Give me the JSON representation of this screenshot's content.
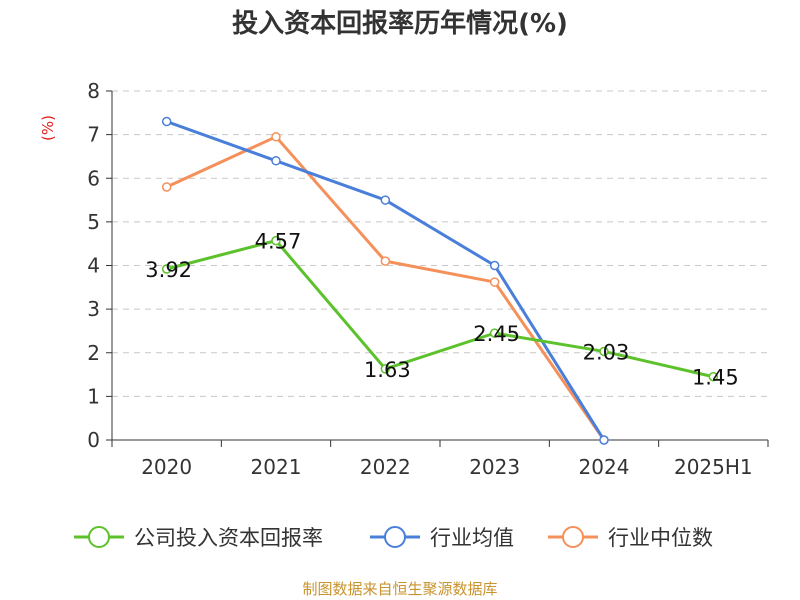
{
  "title": "投入资本回报率历年情况(%)",
  "source": "制图数据来自恒生聚源数据库",
  "chart_data": {
    "type": "line",
    "title": "投入资本回报率历年情况(%)",
    "ylabel": "(%)",
    "ylim": [
      0,
      8
    ],
    "yticks": [
      "0",
      "1",
      "2",
      "3",
      "4",
      "5",
      "6",
      "7",
      "8"
    ],
    "grid": true,
    "legend_position": "bottom",
    "categories": [
      "2020",
      "2021",
      "2022",
      "2023",
      "2024",
      "2025H1"
    ],
    "series": [
      {
        "name": "公司投入资本回报率",
        "color": "#5cc12a",
        "values": [
          3.92,
          4.57,
          1.63,
          2.45,
          2.03,
          1.45
        ],
        "labels": [
          "3.92",
          "4.57",
          "1.63",
          "2.45",
          "2.03",
          "1.45"
        ]
      },
      {
        "name": "行业均值",
        "color": "#4a7fd9",
        "values": [
          7.3,
          6.4,
          5.5,
          4.0,
          0.0,
          null
        ]
      },
      {
        "name": "行业中位数",
        "color": "#f5905a",
        "values": [
          5.8,
          6.95,
          4.1,
          3.62,
          0.0,
          null
        ]
      }
    ]
  }
}
